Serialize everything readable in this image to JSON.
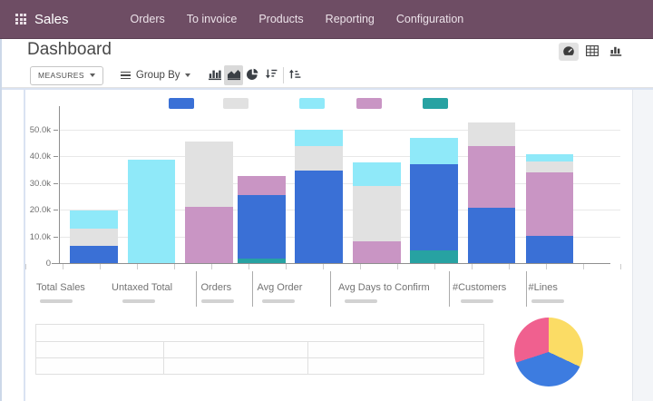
{
  "nav": {
    "app_name": "Sales",
    "menu_items": [
      {
        "label": "Orders"
      },
      {
        "label": "To invoice"
      },
      {
        "label": "Products"
      },
      {
        "label": "Reporting"
      },
      {
        "label": "Configuration"
      }
    ]
  },
  "header": {
    "title": "Dashboard",
    "view_switcher": [
      {
        "name": "dashboard",
        "icon": "tachometer-icon",
        "active": true
      },
      {
        "name": "pivot",
        "icon": "table-grid-icon",
        "active": false
      },
      {
        "name": "graph",
        "icon": "bar-chart-icon",
        "active": false
      }
    ]
  },
  "toolbar": {
    "measures_label": "MEASURES",
    "group_by_label": "Group By",
    "chart_type_buttons": [
      "bar",
      "area",
      "pie",
      "sort-descending",
      "sort-ascending"
    ],
    "active_chart_type": "area"
  },
  "colors": {
    "navbar": "#6e4d64",
    "bar_palette": {
      "blue": "#3a70d6",
      "gray": "#e1e1e1",
      "cyan": "#8fe9f9",
      "pink": "#c995c4",
      "teal": "#27a2a2"
    },
    "pie_palette": {
      "yellow": "#fbdc65",
      "blue": "#3d7ce0",
      "pink": "#f0608f"
    }
  },
  "chart_data": [
    {
      "type": "bar",
      "stacked": true,
      "title": "",
      "xlabel": "",
      "ylabel": "",
      "ylim": [
        0,
        57000
      ],
      "grid": true,
      "y_tick_labels": [
        "0",
        "10.0k",
        "20.0k",
        "30.0k",
        "40.0k",
        "50.0k"
      ],
      "legend_position": "top",
      "legend": [
        "blue",
        "gray",
        "cyan",
        "pink",
        "teal"
      ],
      "measures": [
        "Total Sales",
        "Untaxed Total",
        "Orders",
        "Avg Order",
        "Avg Days to Confirm",
        "#Customers",
        "#Lines"
      ],
      "bars": [
        {
          "segments": [
            {
              "color": "blue",
              "value": 6500
            },
            {
              "color": "gray",
              "value": 6500
            },
            {
              "color": "cyan",
              "value": 6500
            }
          ]
        },
        {
          "segments": [
            {
              "color": "cyan",
              "value": 38500
            }
          ]
        },
        {
          "segments": [
            {
              "color": "pink",
              "value": 21000
            },
            {
              "color": "gray",
              "value": 24300
            }
          ]
        },
        {
          "segments": [
            {
              "color": "teal",
              "value": 1700
            },
            {
              "color": "blue",
              "value": 23700
            },
            {
              "color": "pink",
              "value": 7300
            }
          ]
        },
        {
          "segments": [
            {
              "color": "blue",
              "value": 34700
            },
            {
              "color": "gray",
              "value": 8900
            },
            {
              "color": "cyan",
              "value": 6400
            }
          ]
        },
        {
          "segments": [
            {
              "color": "pink",
              "value": 8000
            },
            {
              "color": "gray",
              "value": 20800
            },
            {
              "color": "cyan",
              "value": 8800
            }
          ]
        },
        {
          "segments": [
            {
              "color": "teal",
              "value": 4900
            },
            {
              "color": "blue",
              "value": 32000
            },
            {
              "color": "cyan",
              "value": 9900
            }
          ]
        },
        {
          "segments": [
            {
              "color": "blue",
              "value": 20800
            },
            {
              "color": "pink",
              "value": 22800
            },
            {
              "color": "gray",
              "value": 8800
            }
          ]
        },
        {
          "segments": [
            {
              "color": "blue",
              "value": 10200
            },
            {
              "color": "pink",
              "value": 23700
            },
            {
              "color": "gray",
              "value": 3900
            },
            {
              "color": "cyan",
              "value": 2900
            }
          ]
        }
      ]
    },
    {
      "type": "pie",
      "title": "",
      "slices": [
        {
          "color": "yellow",
          "pct": 32
        },
        {
          "color": "blue",
          "pct": 38
        },
        {
          "color": "pink",
          "pct": 30
        }
      ]
    }
  ],
  "table": {
    "header": [
      ""
    ],
    "rows": [
      [
        "",
        "",
        ""
      ],
      [
        "",
        "",
        ""
      ]
    ]
  }
}
